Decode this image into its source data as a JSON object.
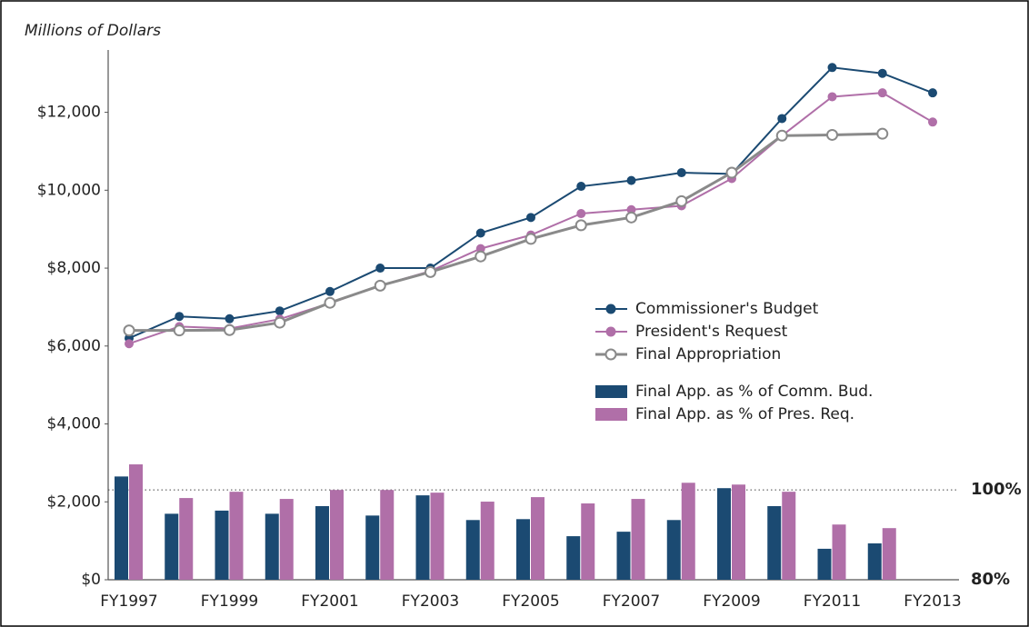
{
  "chart_data": {
    "type": "line",
    "title": "Millions of Dollars",
    "categories": [
      "FY1997",
      null,
      "FY1999",
      null,
      "FY2001",
      null,
      "FY2003",
      null,
      "FY2005",
      null,
      "FY2007",
      null,
      "FY2009",
      null,
      "FY2011",
      null,
      "FY2013"
    ],
    "ylim": [
      0,
      13600
    ],
    "yticks": [
      {
        "value": 0,
        "label": "$0"
      },
      {
        "value": 2000,
        "label": "$2,000"
      },
      {
        "value": 4000,
        "label": "$4,000"
      },
      {
        "value": 6000,
        "label": "$6,000"
      },
      {
        "value": 8000,
        "label": "$8,000"
      },
      {
        "value": 10000,
        "label": "$10,000"
      },
      {
        "value": 12000,
        "label": "$12,000"
      }
    ],
    "y2lim": [
      80,
      198
    ],
    "y2ticks": [
      {
        "value": 80,
        "label": "80%"
      },
      {
        "value": 100,
        "label": "100%"
      }
    ],
    "series": [
      {
        "name": "Commissioner's Budget",
        "type": "line",
        "color": "#1b4a72",
        "marker": "filled",
        "values": [
          6200,
          6760,
          6700,
          6900,
          7400,
          8000,
          8000,
          8900,
          9300,
          10100,
          10250,
          10450,
          10420,
          11840,
          13150,
          13000,
          12500
        ]
      },
      {
        "name": "President's Request",
        "type": "line",
        "color": "#b06fa8",
        "marker": "filled",
        "values": [
          6060,
          6500,
          6450,
          6690,
          7100,
          7550,
          7925,
          8500,
          8850,
          9400,
          9500,
          9600,
          10300,
          11400,
          12400,
          12500,
          11750
        ]
      },
      {
        "name": "Final Appropriation",
        "type": "line",
        "color": "#8a8a8a",
        "marker": "open",
        "values": [
          6400,
          6400,
          6410,
          6600,
          7110,
          7550,
          7900,
          8300,
          8750,
          9100,
          9300,
          9720,
          10450,
          11400,
          11420,
          11450,
          null
        ]
      },
      {
        "name": "Final App. as % of Comm. Bud.",
        "type": "bar",
        "axis": "y2",
        "color": "#1b4a72",
        "values": [
          103.0,
          94.7,
          95.4,
          94.7,
          96.4,
          94.3,
          98.8,
          93.3,
          93.5,
          89.7,
          90.7,
          93.3,
          100.4,
          96.4,
          86.9,
          88.1,
          null
        ]
      },
      {
        "name": "Final App. as % of Pres. Req.",
        "type": "bar",
        "axis": "y2",
        "color": "#b06fa8",
        "values": [
          105.7,
          98.2,
          99.6,
          98.0,
          100.0,
          100.0,
          99.4,
          97.4,
          98.4,
          97.0,
          98.0,
          101.6,
          101.2,
          99.6,
          92.3,
          91.5,
          null
        ]
      }
    ]
  }
}
